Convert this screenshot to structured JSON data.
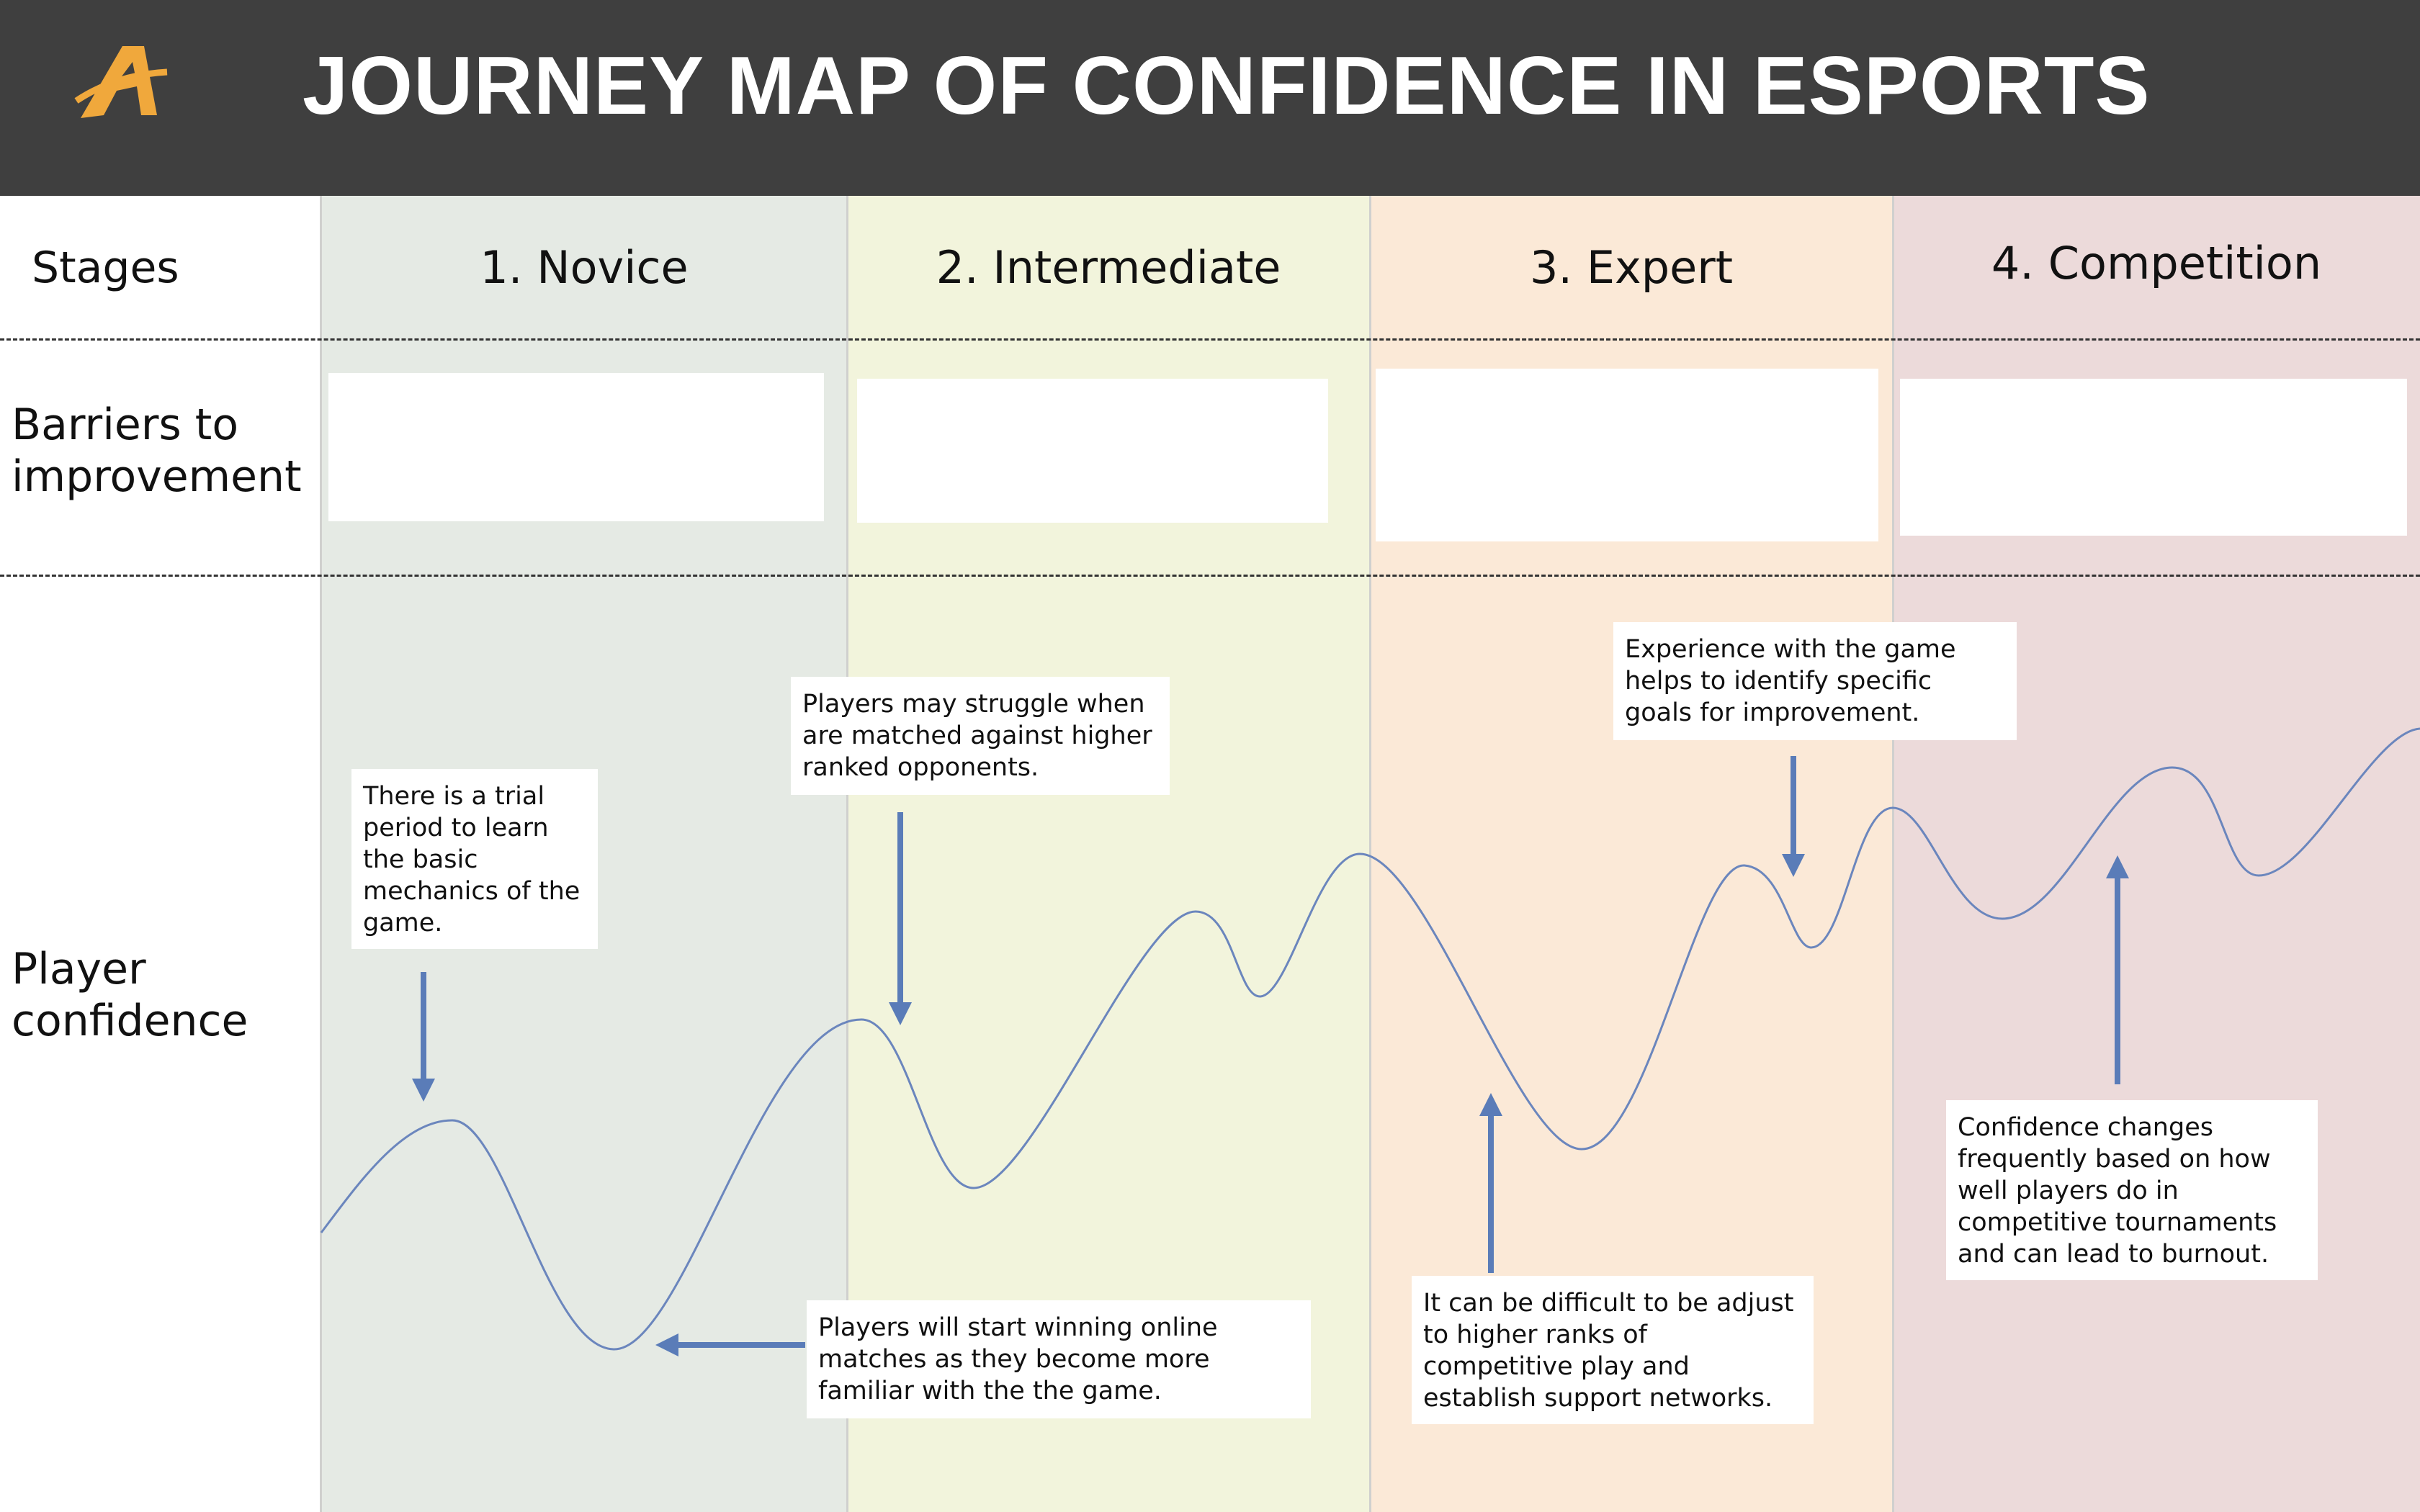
{
  "header": {
    "title": "JOURNEY MAP OF CONFIDENCE IN ESPORTS",
    "logo_letter": "A",
    "background_color": "#3f3f3f",
    "logo_color": "#f0a83c"
  },
  "rows": {
    "stages_label": "Stages",
    "barriers_label_line1": "Barriers to",
    "barriers_label_line2": "improvement",
    "confidence_label_line1": "Player",
    "confidence_label_line2": "confidence"
  },
  "stages": [
    {
      "label": "1. Novice",
      "color": "#e5eae4"
    },
    {
      "label": "2. Intermediate",
      "color": "#f2f4dc"
    },
    {
      "label": "3. Expert",
      "color": "#fbe9d7"
    },
    {
      "label": "4. Competition",
      "color": "#ecdada"
    }
  ],
  "callouts": {
    "trial": "There is a trial period to learn the basic mechanics of the game.",
    "struggle": "Players may struggle when are matched against higher ranked opponents.",
    "winning": "Players will start winning online matches as they become more familiar with the the game.",
    "experience": "Experience with the game helps to identify specific goals for improvement.",
    "difficult": "It can be difficult to be adjust to higher ranks of competitive play and establish support networks.",
    "burnout": "Confidence changes frequently based on how well players do in competitive tournaments and can lead to burnout."
  },
  "colors": {
    "curve": "#6b86bd",
    "arrow": "#5a7cb8"
  }
}
